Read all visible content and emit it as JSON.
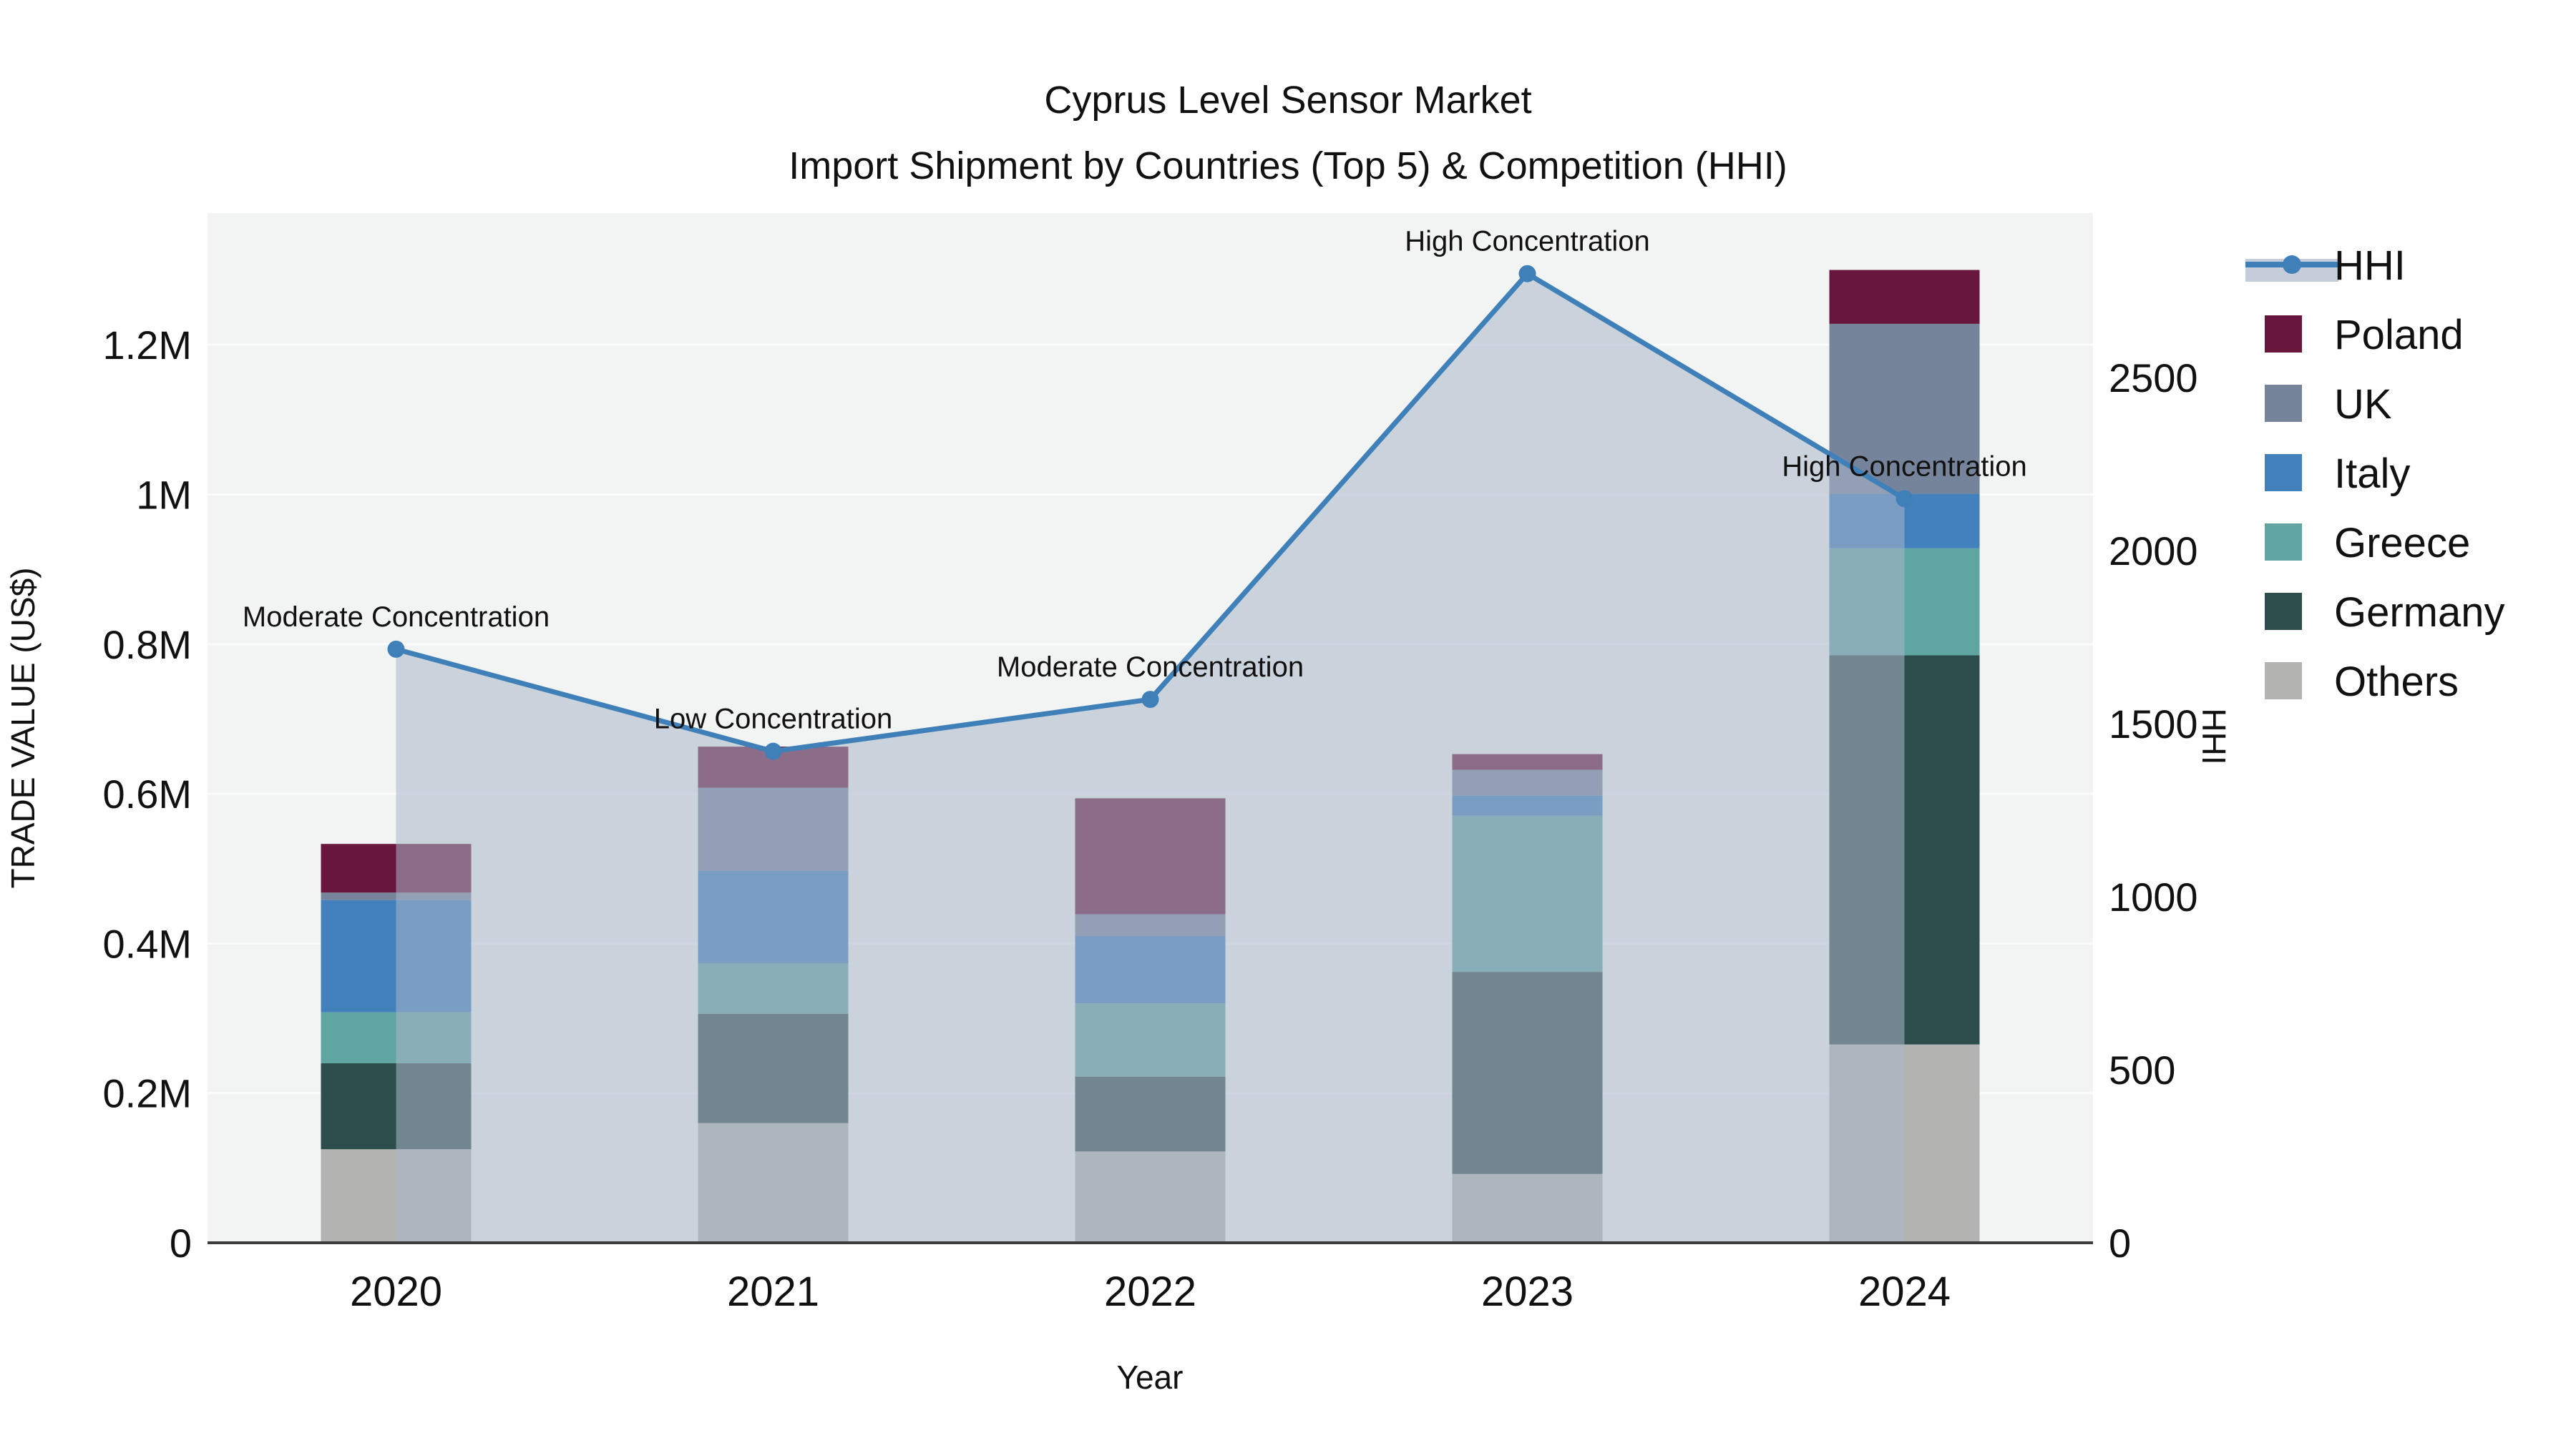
{
  "title": {
    "line1": "Cyprus Level Sensor Market",
    "line2": "Import Shipment by Countries (Top 5) & Competition (HHI)"
  },
  "axes": {
    "x_title": "Year",
    "y_left_title": "TRADE VALUE (US$)",
    "y_right_title": "HHI",
    "y_left_ticks": [
      {
        "label": "0",
        "value": 0
      },
      {
        "label": "0.2M",
        "value": 200000
      },
      {
        "label": "0.4M",
        "value": 400000
      },
      {
        "label": "0.6M",
        "value": 600000
      },
      {
        "label": "0.8M",
        "value": 800000
      },
      {
        "label": "1M",
        "value": 1000000
      },
      {
        "label": "1.2M",
        "value": 1200000
      }
    ],
    "y_right_ticks": [
      {
        "label": "0",
        "value": 0
      },
      {
        "label": "500",
        "value": 500
      },
      {
        "label": "1000",
        "value": 1000
      },
      {
        "label": "1500",
        "value": 1500
      },
      {
        "label": "2000",
        "value": 2000
      },
      {
        "label": "2500",
        "value": 2500
      }
    ],
    "y_left_max": 1376000,
    "y_right_max": 2975
  },
  "chart_data": {
    "type": "bar+line",
    "title": "Cyprus Level Sensor Market — Import Shipment by Countries (Top 5) & Competition (HHI)",
    "xlabel": "Year",
    "ylabel_left": "TRADE VALUE (US$)",
    "ylabel_right": "HHI",
    "categories": [
      "2020",
      "2021",
      "2022",
      "2023",
      "2024"
    ],
    "stack_order_note": "series listed bottom-to-top of the stacked bars; values in US$",
    "series": [
      {
        "name": "Others",
        "color": "#B3B3B1",
        "values": [
          125000,
          160000,
          122000,
          92000,
          265000
        ]
      },
      {
        "name": "Germany",
        "color": "#2D4D4D",
        "values": [
          115000,
          146000,
          100000,
          270000,
          520000
        ]
      },
      {
        "name": "Greece",
        "color": "#5FA6A3",
        "values": [
          68000,
          67000,
          98000,
          209000,
          143000
        ]
      },
      {
        "name": "Italy",
        "color": "#4281BC",
        "values": [
          150000,
          124000,
          90000,
          27000,
          73000
        ]
      },
      {
        "name": "UK",
        "color": "#75849B",
        "values": [
          10000,
          111000,
          29000,
          34000,
          227000
        ]
      },
      {
        "name": "Poland",
        "color": "#68163D",
        "values": [
          65000,
          55000,
          155000,
          21000,
          72000
        ]
      }
    ],
    "bar_totals": [
      533000,
      663000,
      594000,
      653000,
      1300000
    ],
    "hhi": {
      "name": "HHI",
      "line_color": "#4080B8",
      "area_color": "#A9B6C9",
      "area_opacity": 0.55,
      "values": [
        1715,
        1420,
        1570,
        2800,
        2150
      ]
    },
    "annotations": [
      {
        "year": "2020",
        "label": "Moderate Concentration"
      },
      {
        "year": "2021",
        "label": "Low Concentration"
      },
      {
        "year": "2022",
        "label": "Moderate Concentration"
      },
      {
        "year": "2023",
        "label": "High Concentration"
      },
      {
        "year": "2024",
        "label": "High Concentration"
      }
    ],
    "ylim_left": [
      0,
      1376000
    ],
    "ylim_right": [
      0,
      2975
    ],
    "grid": "horizontal",
    "legend_position": "right"
  },
  "legend": {
    "items": [
      {
        "label": "HHI",
        "type": "line",
        "color": "#4080B8",
        "band_color": "#C5CDDA"
      },
      {
        "label": "Poland",
        "type": "swatch",
        "color": "#68163D"
      },
      {
        "label": "UK",
        "type": "swatch",
        "color": "#75849B"
      },
      {
        "label": "Italy",
        "type": "swatch",
        "color": "#4281BC"
      },
      {
        "label": "Greece",
        "type": "swatch",
        "color": "#5FA6A3"
      },
      {
        "label": "Germany",
        "type": "swatch",
        "color": "#2D4D4D"
      },
      {
        "label": "Others",
        "type": "swatch",
        "color": "#B3B3B1"
      }
    ]
  },
  "colors": {
    "plot_bg": "#F2F3F3",
    "grid": "#FAFBFC",
    "axis_line": "#3C3C3C",
    "text": "#111111"
  }
}
